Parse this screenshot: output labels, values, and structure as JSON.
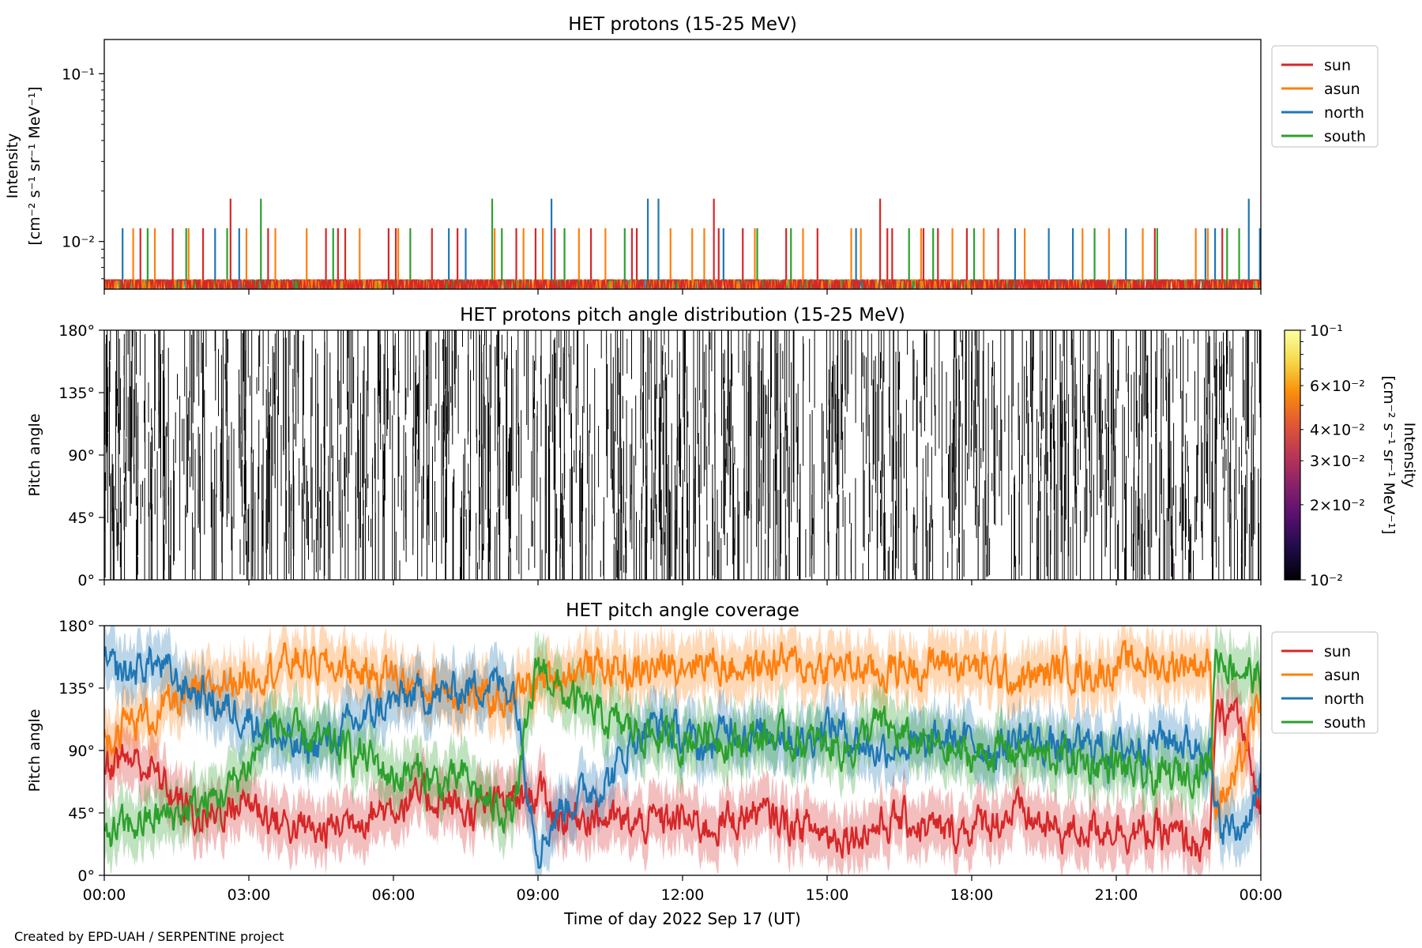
{
  "credit": "Created by EPD-UAH / SERPENTINE project",
  "colors": {
    "sun": "#d62728",
    "asun": "#ff7f0e",
    "north": "#1f77b4",
    "south": "#2ca02c"
  },
  "chart_data": [
    {
      "type": "line",
      "title": "HET protons (15-25 MeV)",
      "ylabel": "Intensity",
      "yunit": "[cm⁻² s⁻¹ sr⁻¹ MeV⁻¹]",
      "yscale": "log",
      "ylim": [
        0.0052,
        0.16
      ],
      "yticks": [
        {
          "value": 0.1,
          "label": "10⁻¹"
        },
        {
          "value": 0.01,
          "label": "10⁻²"
        }
      ],
      "xlim_hours": [
        0,
        24
      ],
      "x_tick_labels": [
        "00:00",
        "03:00",
        "06:00",
        "09:00",
        "12:00",
        "15:00",
        "18:00",
        "21:00",
        "00:00"
      ],
      "legend_placement": "outside-right-top",
      "baseline_level": 0.0059,
      "series": [
        {
          "name": "sun",
          "color_key": "sun",
          "spike_hours": [
            0.75,
            1.42,
            2.05,
            2.62,
            3.4,
            4.6,
            4.85,
            5.0,
            5.9,
            6.05,
            6.8,
            7.33,
            8.55,
            8.95,
            9.35,
            10.1,
            10.95,
            11.05,
            12.65,
            12.75,
            13.25,
            14.15,
            14.8,
            16.1,
            16.25,
            16.35,
            17.0,
            17.3,
            17.9,
            18.55,
            21.8,
            23.2
          ],
          "spike_values": [
            0.012,
            0.012,
            0.012,
            0.018,
            0.012,
            0.012,
            0.012,
            0.012,
            0.012,
            0.012,
            0.012,
            0.012,
            0.012,
            0.012,
            0.012,
            0.012,
            0.012,
            0.012,
            0.018,
            0.012,
            0.012,
            0.012,
            0.012,
            0.018,
            0.012,
            0.012,
            0.012,
            0.012,
            0.012,
            0.012,
            0.012,
            0.012
          ]
        },
        {
          "name": "asun",
          "color_key": "asun",
          "spike_hours": [
            0.6,
            1.05,
            1.75,
            2.95,
            3.55,
            4.2,
            5.3,
            6.1,
            8.1,
            8.7,
            9.1,
            9.85,
            10.4,
            11.75,
            12.2,
            12.45,
            13.5,
            14.5,
            15.5,
            15.7,
            16.95,
            17.6,
            18.25,
            19.1,
            20.3,
            20.85,
            21.55,
            22.65,
            22.9
          ],
          "spike_values": [
            0.012,
            0.012,
            0.012,
            0.012,
            0.012,
            0.012,
            0.012,
            0.012,
            0.012,
            0.012,
            0.012,
            0.012,
            0.012,
            0.012,
            0.012,
            0.012,
            0.012,
            0.012,
            0.012,
            0.012,
            0.012,
            0.012,
            0.012,
            0.012,
            0.012,
            0.012,
            0.012,
            0.012,
            0.012
          ]
        },
        {
          "name": "north",
          "color_key": "north",
          "spike_hours": [
            0.38,
            2.3,
            2.8,
            7.15,
            7.5,
            9.28,
            11.28,
            11.5,
            12.85,
            15.6,
            18.9,
            19.6,
            20.1,
            21.2,
            22.85,
            23.05,
            23.75,
            23.98
          ],
          "spike_values": [
            0.012,
            0.012,
            0.012,
            0.012,
            0.012,
            0.018,
            0.018,
            0.018,
            0.012,
            0.012,
            0.012,
            0.012,
            0.012,
            0.012,
            0.012,
            0.012,
            0.018,
            0.012
          ]
        },
        {
          "name": "south",
          "color_key": "south",
          "spike_hours": [
            0.9,
            1.7,
            2.55,
            3.25,
            4.75,
            6.35,
            8.05,
            8.25,
            9.55,
            10.8,
            13.55,
            14.25,
            16.7,
            17.2,
            18.05,
            20.55,
            21.85,
            23.3,
            23.55
          ],
          "spike_values": [
            0.012,
            0.012,
            0.012,
            0.018,
            0.012,
            0.012,
            0.018,
            0.012,
            0.012,
            0.012,
            0.012,
            0.012,
            0.012,
            0.012,
            0.012,
            0.012,
            0.012,
            0.012,
            0.012
          ]
        }
      ]
    },
    {
      "type": "heatmap",
      "title": "HET protons pitch angle distribution (15-25 MeV)",
      "ylabel": "Pitch angle",
      "ylim": [
        0,
        180
      ],
      "yticks": [
        0,
        45,
        90,
        135,
        180
      ],
      "ytick_labels": [
        "0°",
        "45°",
        "90°",
        "135°",
        "180°"
      ],
      "xlim_hours": [
        0,
        24
      ],
      "colorbar": {
        "label": "Intensity",
        "unit": "[cm⁻² s⁻¹ sr⁻¹ MeV⁻¹]",
        "scale": "log",
        "range": [
          0.01,
          0.1
        ],
        "colormap": "inferno",
        "ticks": [
          {
            "value": 0.1,
            "label": "10⁻¹"
          },
          {
            "value": 0.06,
            "label": "6×10⁻²"
          },
          {
            "value": 0.04,
            "label": "4×10⁻²"
          },
          {
            "value": 0.03,
            "label": "3×10⁻²"
          },
          {
            "value": 0.02,
            "label": "2×10⁻²"
          },
          {
            "value": 0.01,
            "label": "10⁻²"
          }
        ]
      },
      "note_values": "dense near-minimum intensity (~0.01) column segments across the full day"
    },
    {
      "type": "line",
      "title": "HET pitch angle coverage",
      "ylabel": "Pitch angle",
      "xlabel": "Time of day 2022 Sep 17 (UT)",
      "ylim": [
        0,
        180
      ],
      "yticks": [
        0,
        45,
        90,
        135,
        180
      ],
      "ytick_labels": [
        "0°",
        "45°",
        "90°",
        "135°",
        "180°"
      ],
      "xlim_hours": [
        0,
        24
      ],
      "x_tick_labels": [
        "00:00",
        "03:00",
        "06:00",
        "09:00",
        "12:00",
        "15:00",
        "18:00",
        "21:00",
        "00:00"
      ],
      "legend_placement": "outside-right-top",
      "band_halfwidth_deg": 20,
      "series": [
        {
          "name": "sun",
          "color_key": "sun",
          "hours": [
            0,
            0.5,
            1,
            1.5,
            2,
            2.5,
            3,
            3.5,
            4,
            4.5,
            5,
            5.5,
            6,
            6.5,
            7,
            7.5,
            8,
            8.5,
            9,
            9.5,
            10,
            10.5,
            11,
            11.5,
            12,
            12.5,
            13,
            13.5,
            14,
            14.5,
            15,
            15.5,
            16,
            16.5,
            17,
            17.5,
            18,
            18.5,
            19,
            19.5,
            20,
            20.5,
            21,
            21.5,
            22,
            22.5,
            22.95,
            23.05,
            23.5,
            24
          ],
          "values": [
            80,
            85,
            75,
            55,
            40,
            48,
            55,
            40,
            35,
            30,
            40,
            45,
            50,
            55,
            55,
            45,
            50,
            55,
            60,
            40,
            45,
            40,
            35,
            40,
            40,
            35,
            40,
            45,
            40,
            35,
            30,
            30,
            35,
            40,
            35,
            30,
            35,
            40,
            45,
            35,
            30,
            35,
            35,
            30,
            30,
            25,
            20,
            110,
            120,
            45
          ]
        },
        {
          "name": "asun",
          "color_key": "asun",
          "hours": [
            0,
            0.5,
            1,
            1.5,
            2,
            2.5,
            3,
            3.5,
            4,
            4.5,
            5,
            5.5,
            6,
            6.5,
            7,
            7.5,
            8,
            8.5,
            9,
            9.5,
            10,
            10.5,
            11,
            11.5,
            12,
            12.5,
            13,
            13.5,
            14,
            14.5,
            15,
            15.5,
            16,
            16.5,
            17,
            17.5,
            18,
            18.5,
            19,
            19.5,
            20,
            20.5,
            21,
            21.5,
            22,
            22.5,
            22.95,
            23.05,
            23.5,
            24
          ],
          "values": [
            100,
            110,
            115,
            125,
            130,
            140,
            145,
            150,
            155,
            150,
            150,
            145,
            145,
            135,
            135,
            130,
            125,
            130,
            140,
            145,
            150,
            150,
            145,
            150,
            155,
            155,
            150,
            150,
            155,
            150,
            150,
            150,
            145,
            150,
            150,
            155,
            150,
            145,
            140,
            145,
            150,
            145,
            150,
            155,
            150,
            155,
            150,
            50,
            70,
            130
          ]
        },
        {
          "name": "north",
          "color_key": "north",
          "hours": [
            0,
            0.5,
            1,
            1.5,
            2,
            2.5,
            3,
            3.5,
            4,
            4.5,
            5,
            5.5,
            6,
            6.5,
            7,
            7.5,
            8,
            8.5,
            9,
            9.5,
            10,
            10.5,
            11,
            11.5,
            12,
            12.5,
            13,
            13.5,
            14,
            14.5,
            15,
            15.5,
            16,
            16.5,
            17,
            17.5,
            18,
            18.5,
            19,
            19.5,
            20,
            20.5,
            21,
            21.5,
            22,
            22.5,
            22.95,
            23.05,
            23.5,
            24
          ],
          "values": [
            150,
            145,
            155,
            140,
            130,
            120,
            115,
            100,
            90,
            95,
            105,
            115,
            125,
            130,
            130,
            135,
            140,
            135,
            20,
            50,
            60,
            70,
            100,
            110,
            100,
            90,
            110,
            100,
            105,
            95,
            110,
            100,
            90,
            95,
            90,
            100,
            95,
            90,
            100,
            95,
            90,
            95,
            90,
            95,
            100,
            95,
            90,
            40,
            30,
            60
          ]
        },
        {
          "name": "south",
          "color_key": "south",
          "hours": [
            0,
            0.5,
            1,
            1.5,
            2,
            2.5,
            3,
            3.5,
            4,
            4.5,
            5,
            5.5,
            6,
            6.5,
            7,
            7.5,
            8,
            8.5,
            9,
            9.5,
            10,
            10.5,
            11,
            11.5,
            12,
            12.5,
            13,
            13.5,
            14,
            14.5,
            15,
            15.5,
            16,
            16.5,
            17,
            17.5,
            18,
            18.5,
            19,
            19.5,
            20,
            20.5,
            21,
            21.5,
            22,
            22.5,
            22.95,
            23.05,
            23.5,
            24
          ],
          "values": [
            30,
            35,
            40,
            45,
            50,
            60,
            80,
            110,
            100,
            95,
            90,
            85,
            70,
            75,
            65,
            70,
            50,
            45,
            155,
            130,
            120,
            110,
            105,
            100,
            95,
            105,
            95,
            100,
            100,
            95,
            95,
            90,
            110,
            100,
            95,
            90,
            85,
            90,
            90,
            85,
            85,
            80,
            80,
            70,
            70,
            75,
            80,
            160,
            150,
            140
          ]
        }
      ]
    }
  ]
}
